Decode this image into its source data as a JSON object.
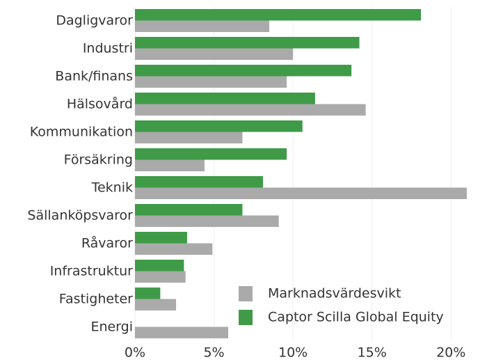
{
  "chart_data": {
    "type": "barh",
    "categories": [
      "Dagligvaror",
      "Industri",
      "Bank/finans",
      "Hälsovård",
      "Kommunikation",
      "Försäkring",
      "Teknik",
      "Sällanköpsvaror",
      "Råvaror",
      "Infrastruktur",
      "Fastigheter",
      "Energi"
    ],
    "series": [
      {
        "name": "Marknadsvärdesvikt",
        "color": "#aaaaaa",
        "values": [
          8.5,
          10.0,
          9.6,
          14.6,
          6.8,
          4.4,
          21.0,
          9.1,
          4.9,
          3.2,
          2.6,
          5.9
        ]
      },
      {
        "name": "Captor Scilla Global Equity",
        "color": "#3f9b48",
        "values": [
          18.1,
          14.2,
          13.7,
          11.4,
          10.6,
          9.6,
          8.1,
          6.8,
          3.3,
          3.1,
          1.6,
          0
        ]
      }
    ],
    "xlim": [
      0,
      21.4
    ],
    "xticks": [
      {
        "value": 0,
        "label": "0%"
      },
      {
        "value": 5,
        "label": "5%"
      },
      {
        "value": 10,
        "label": "10%"
      },
      {
        "value": 15,
        "label": "15%"
      },
      {
        "value": 20,
        "label": "20%"
      }
    ],
    "grid": true,
    "legend": "lower right"
  }
}
